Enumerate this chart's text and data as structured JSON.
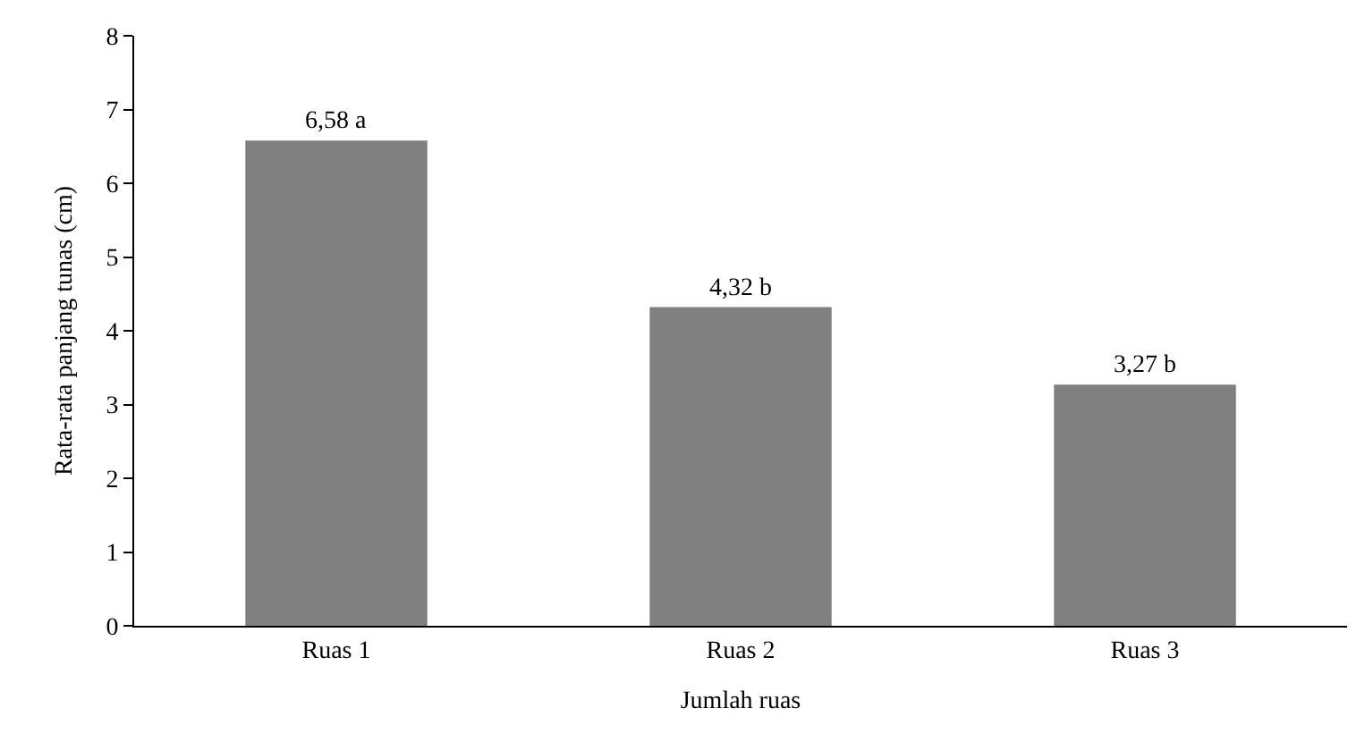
{
  "chart_data": {
    "type": "bar",
    "xlabel": "Jumlah ruas",
    "ylabel": "Rata-rata panjang tunas (cm)",
    "categories": [
      "Ruas 1",
      "Ruas 2",
      "Ruas 3"
    ],
    "values": [
      6.58,
      4.32,
      3.27
    ],
    "value_labels": [
      "6,58 a",
      "4,32 b",
      "3,27 b"
    ],
    "color": "#808080",
    "ylim": [
      0,
      8
    ],
    "yticks": [
      0,
      1,
      2,
      3,
      4,
      5,
      6,
      7,
      8
    ],
    "grid": false
  }
}
